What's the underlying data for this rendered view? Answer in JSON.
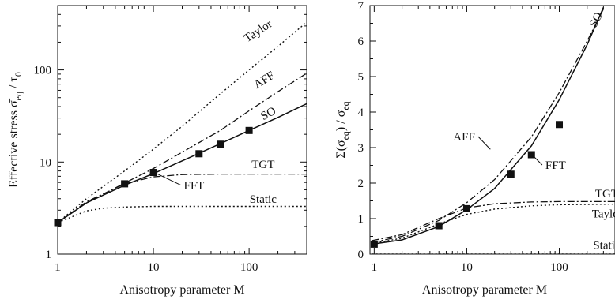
{
  "chart_data": [
    {
      "type": "line",
      "xscale": "log",
      "yscale": "log",
      "xlim": [
        1,
        400
      ],
      "ylim": [
        1,
        500
      ],
      "xlabel": "Anisotropy parameter M",
      "ylabel_main": "Effective stress σ̄",
      "ylabel_sub": "eq",
      "ylabel_div": " / τ",
      "ylabel_sub2": "0",
      "xticks": [
        {
          "v": 1,
          "label": "1"
        },
        {
          "v": 10,
          "label": "10"
        },
        {
          "v": 100,
          "label": "100"
        }
      ],
      "yticks": [
        {
          "v": 1,
          "label": "1"
        },
        {
          "v": 10,
          "label": "10"
        },
        {
          "v": 100,
          "label": "100"
        }
      ],
      "series": [
        {
          "name": "Taylor",
          "style": "dotted",
          "x": [
            1,
            2,
            5,
            10,
            20,
            50,
            100,
            200,
            400
          ],
          "y": [
            2.2,
            4.0,
            8.0,
            13.8,
            24.5,
            55,
            100,
            180,
            330
          ]
        },
        {
          "name": "AFF",
          "style": "dashdot",
          "x": [
            1,
            2,
            5,
            10,
            20,
            50,
            100,
            200,
            400
          ],
          "y": [
            2.2,
            3.6,
            5.9,
            8.5,
            12.8,
            22,
            36,
            58,
            92
          ]
        },
        {
          "name": "SO",
          "style": "solid",
          "x": [
            1,
            2,
            5,
            10,
            20,
            50,
            100,
            200,
            400
          ],
          "y": [
            2.2,
            3.6,
            5.6,
            7.5,
            10.3,
            15.8,
            22,
            30.5,
            43
          ]
        },
        {
          "name": "TGT",
          "style": "dashdot",
          "x": [
            1,
            2,
            5,
            10,
            20,
            50,
            100,
            200,
            400
          ],
          "y": [
            2.2,
            3.7,
            5.8,
            6.9,
            7.3,
            7.4,
            7.4,
            7.4,
            7.4
          ]
        },
        {
          "name": "Static",
          "style": "dotted",
          "x": [
            1,
            2,
            3,
            5,
            10,
            20,
            50,
            100,
            400
          ],
          "y": [
            2.2,
            2.95,
            3.15,
            3.25,
            3.3,
            3.3,
            3.3,
            3.3,
            3.3
          ]
        }
      ],
      "markers": {
        "name": "FFT",
        "x": [
          1,
          5,
          10,
          30,
          50,
          100
        ],
        "y": [
          2.2,
          5.8,
          7.7,
          12.3,
          15.6,
          22
        ]
      },
      "annotations": [
        {
          "text": "Taylor",
          "x": 130,
          "y": 245,
          "rotate": -33
        },
        {
          "text": "AFF",
          "x": 150,
          "y": 72,
          "rotate": -32
        },
        {
          "text": "SO",
          "x": 165,
          "y": 31,
          "rotate": -28
        },
        {
          "text": "TGT",
          "x": 140,
          "y": 8.6,
          "rotate": 0
        },
        {
          "text": "Static",
          "x": 140,
          "y": 3.6,
          "rotate": 0
        },
        {
          "text": "FFT",
          "x": 20,
          "y": 5.1,
          "rotate": 0,
          "leader": {
            "x": 10.5,
            "y": 7.6
          }
        }
      ]
    },
    {
      "type": "line",
      "xscale": "log",
      "yscale": "linear",
      "xlim": [
        0.9,
        400
      ],
      "ylim": [
        0,
        7
      ],
      "xlabel": "Anisotropy parameter M",
      "ylabel_main": "Σ(σ",
      "ylabel_sub": "eq",
      "ylabel_div": ") / σ",
      "ylabel_sub2": "eq",
      "xticks": [
        {
          "v": 1,
          "label": "1"
        },
        {
          "v": 10,
          "label": "10"
        },
        {
          "v": 100,
          "label": "100"
        }
      ],
      "yticks": [
        {
          "v": 0,
          "label": "0"
        },
        {
          "v": 1,
          "label": "1"
        },
        {
          "v": 2,
          "label": "2"
        },
        {
          "v": 3,
          "label": "3"
        },
        {
          "v": 4,
          "label": "4"
        },
        {
          "v": 5,
          "label": "5"
        },
        {
          "v": 6,
          "label": "6"
        },
        {
          "v": 7,
          "label": "7"
        }
      ],
      "series": [
        {
          "name": "SO",
          "style": "solid",
          "x": [
            0.95,
            2,
            5,
            10,
            20,
            50,
            100,
            200,
            300
          ],
          "y": [
            0.28,
            0.4,
            0.78,
            1.25,
            1.85,
            3.05,
            4.35,
            5.9,
            6.95
          ]
        },
        {
          "name": "AFF",
          "style": "dashdot",
          "x": [
            0.95,
            2,
            5,
            10,
            20,
            50,
            100,
            200,
            300
          ],
          "y": [
            0.33,
            0.5,
            0.95,
            1.45,
            2.1,
            3.3,
            4.55,
            6.0,
            6.9
          ]
        },
        {
          "name": "TGT",
          "style": "dashdot",
          "x": [
            0.95,
            2,
            5,
            10,
            20,
            50,
            100,
            200,
            400
          ],
          "y": [
            0.38,
            0.55,
            1.0,
            1.3,
            1.42,
            1.47,
            1.48,
            1.48,
            1.48
          ]
        },
        {
          "name": "Taylor",
          "style": "dotted",
          "x": [
            0.95,
            2,
            5,
            10,
            20,
            50,
            100,
            200,
            400
          ],
          "y": [
            0.3,
            0.45,
            0.85,
            1.12,
            1.27,
            1.36,
            1.39,
            1.4,
            1.41
          ]
        },
        {
          "name": "Static",
          "style": "dotted",
          "x": [
            0.95,
            400
          ],
          "y": [
            0,
            0
          ]
        }
      ],
      "markers": {
        "name": "FFT",
        "x": [
          1,
          5,
          10,
          30,
          50,
          100
        ],
        "y": [
          0.28,
          0.8,
          1.28,
          2.25,
          2.8,
          3.65
        ]
      },
      "annotations": [
        {
          "text": "SO",
          "x": 270,
          "y": 6.55,
          "rotate": -62
        },
        {
          "text": "AFF",
          "x": 6.8,
          "y": 3.2,
          "rotate": 0,
          "leader": {
            "x": 18,
            "y": 2.95
          }
        },
        {
          "text": "FFT",
          "x": 68,
          "y": 2.4,
          "rotate": 0,
          "leader": {
            "x": 53,
            "y": 2.75
          }
        },
        {
          "text": "TGT",
          "x": 325,
          "y": 1.6,
          "rotate": 0
        },
        {
          "text": "Taylor",
          "x": 330,
          "y": 1.03,
          "rotate": 0
        },
        {
          "text": "Static",
          "x": 325,
          "y": 0.15,
          "rotate": 0
        }
      ]
    }
  ]
}
